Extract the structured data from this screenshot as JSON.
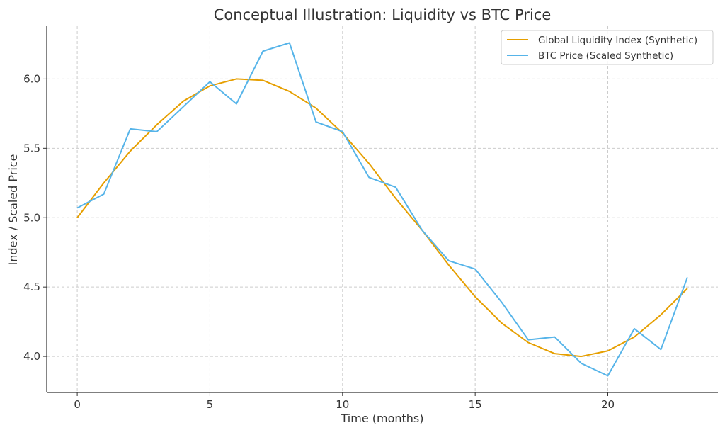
{
  "chart_data": {
    "type": "line",
    "title": "Conceptual Illustration: Liquidity vs BTC Price",
    "xlabel": "Time (months)",
    "ylabel": "Index / Scaled Price",
    "xlim": [
      -1.15,
      24.15
    ],
    "ylim": [
      3.74,
      6.38
    ],
    "xticks": [
      0,
      5,
      10,
      15,
      20
    ],
    "yticks": [
      4.0,
      4.5,
      5.0,
      5.5,
      6.0
    ],
    "xtick_labels": [
      "0",
      "5",
      "10",
      "15",
      "20"
    ],
    "ytick_labels": [
      "4.0",
      "4.5",
      "5.0",
      "5.5",
      "6.0"
    ],
    "grid": true,
    "legend_position": "top-right",
    "x": [
      0,
      1,
      2,
      3,
      4,
      5,
      6,
      7,
      8,
      9,
      10,
      11,
      12,
      13,
      14,
      15,
      16,
      17,
      18,
      19,
      20,
      21,
      22,
      23
    ],
    "series": [
      {
        "name": "Global Liquidity Index (Synthetic)",
        "color": "#E69F00",
        "values": [
          5.0,
          5.25,
          5.48,
          5.67,
          5.84,
          5.95,
          6.0,
          5.99,
          5.91,
          5.79,
          5.61,
          5.39,
          5.14,
          4.91,
          4.66,
          4.43,
          4.24,
          4.1,
          4.02,
          4.0,
          4.04,
          4.14,
          4.3,
          4.49
        ]
      },
      {
        "name": "BTC Price (Scaled Synthetic)",
        "color": "#56B4E9",
        "values": [
          5.07,
          5.17,
          5.64,
          5.62,
          5.8,
          5.98,
          5.82,
          6.2,
          6.26,
          5.69,
          5.62,
          5.29,
          5.22,
          4.91,
          4.69,
          4.63,
          4.39,
          4.12,
          4.14,
          3.95,
          3.86,
          4.2,
          4.05,
          4.57
        ]
      }
    ]
  }
}
